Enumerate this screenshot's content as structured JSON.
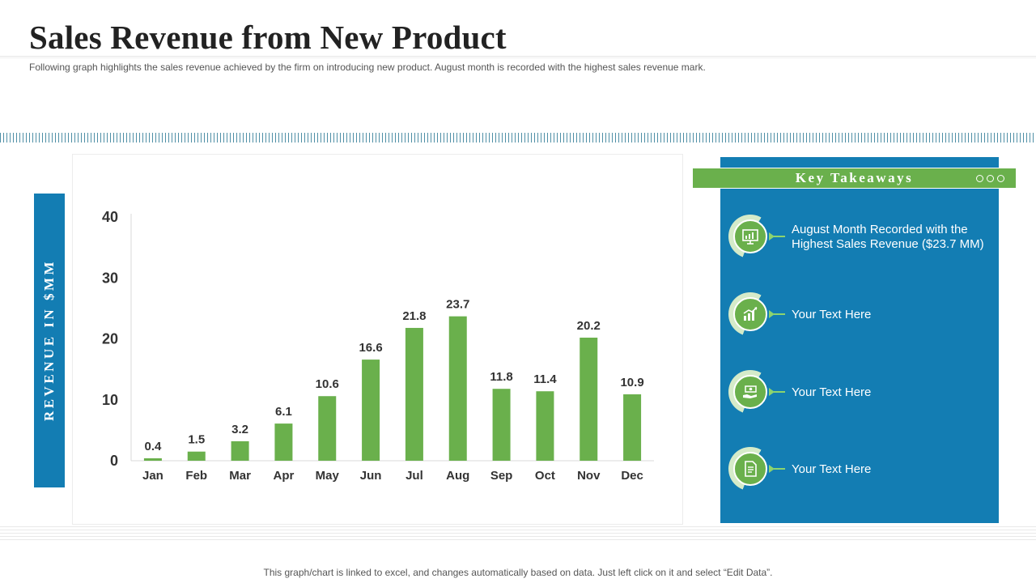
{
  "header": {
    "title": "Sales Revenue from New Product",
    "subtitle": "Following graph highlights the sales revenue achieved by the firm on introducing new product. August month is recorded with the highest sales revenue mark."
  },
  "colors": {
    "accent_blue": "#137db3",
    "bar_green": "#6ab04c",
    "text_dark": "#333333"
  },
  "chart_data": {
    "type": "bar",
    "title": "",
    "xlabel": "",
    "ylabel": "REVENUE IN $MM",
    "categories": [
      "Jan",
      "Feb",
      "Mar",
      "Apr",
      "May",
      "Jun",
      "Jul",
      "Aug",
      "Sep",
      "Oct",
      "Nov",
      "Dec"
    ],
    "values": [
      0.4,
      1.5,
      3.2,
      6.1,
      10.6,
      16.6,
      21.8,
      23.7,
      11.8,
      11.4,
      20.2,
      10.9
    ],
    "data_labels": [
      "0.4",
      "1.5",
      "3.2",
      "6.1",
      "10.6",
      "16.6",
      "21.8",
      "23.7",
      "11.8",
      "11.4",
      "20.2",
      "10.9"
    ],
    "yticks": [
      0,
      10,
      20,
      30,
      40
    ],
    "ylim": [
      0,
      40
    ],
    "grid": false,
    "legend": "none"
  },
  "key_takeaways": {
    "title": "Key Takeaways",
    "items": [
      {
        "icon": "presentation-chart-icon",
        "text": "August Month Recorded with the Highest Sales Revenue ($23.7 MM)"
      },
      {
        "icon": "growth-chart-icon",
        "text": "Your Text Here"
      },
      {
        "icon": "money-hand-icon",
        "text": "Your Text Here"
      },
      {
        "icon": "document-icon",
        "text": "Your Text Here"
      }
    ]
  },
  "footer": {
    "note": "This graph/chart is linked to excel,  and changes automatically based on data. Just left click on it and select “Edit Data”."
  }
}
